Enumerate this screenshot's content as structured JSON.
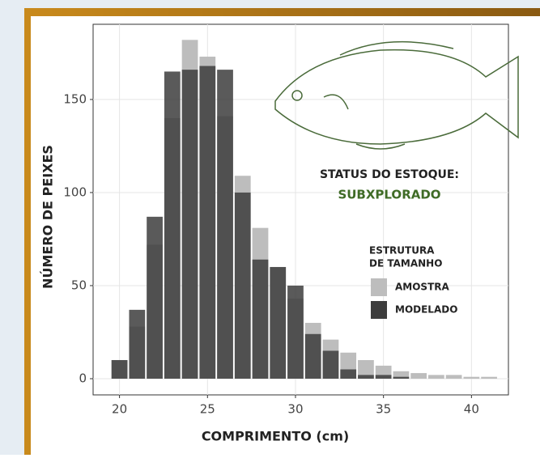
{
  "chart_data": {
    "type": "histogram",
    "xlabel": "COMPRIMENTO (cm)",
    "ylabel": "NÚMERO DE PEIXES",
    "bins": [
      19.5,
      20.5,
      21.5,
      22.5,
      23.5,
      24.5,
      25.5,
      26.5,
      27.5,
      28.5,
      29.5,
      30.5,
      31.5,
      32.5,
      33.5,
      34.5,
      35.5,
      36.5,
      37.5,
      38.5,
      39.5,
      40.5,
      41.5
    ],
    "series": [
      {
        "name": "AMOSTRA",
        "color": "#bdbdbd",
        "values": [
          10,
          28,
          72,
          140,
          182,
          173,
          141,
          109,
          81,
          60,
          43,
          30,
          21,
          14,
          10,
          7,
          4,
          3,
          2,
          2,
          1,
          1
        ]
      },
      {
        "name": "MODELADO",
        "color": "#3d3d3d",
        "values": [
          10,
          37,
          87,
          165,
          166,
          168,
          166,
          100,
          64,
          60,
          50,
          24,
          15,
          5,
          2,
          2,
          1,
          0,
          0,
          0,
          0,
          0
        ]
      }
    ],
    "legend_title": [
      "ESTRUTURA",
      "DE TAMANHO"
    ],
    "annotations": [
      "STATUS DO ESTOQUE:",
      "SUBXPLORADO"
    ],
    "xlim": [
      18.5,
      42.1
    ],
    "ylim": [
      -8.7,
      190.4
    ],
    "xticks": [
      20,
      25,
      30,
      35,
      40
    ],
    "yticks": [
      0,
      50,
      100,
      150
    ],
    "grid": true
  }
}
